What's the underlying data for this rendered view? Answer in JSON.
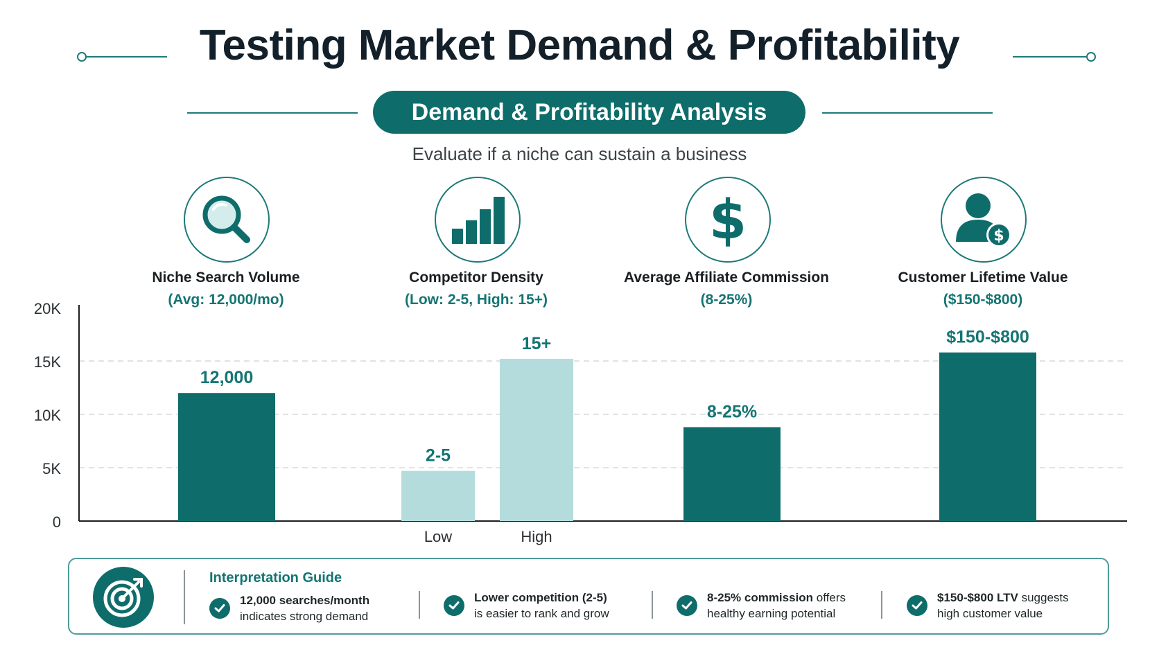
{
  "title": "Testing Market Demand & Profitability",
  "banner": "Demand & Profitability Analysis",
  "subtitle": "Evaluate if a niche can sustain a business",
  "colors": {
    "primary": "#0e6d6b",
    "light": "#b4dcdc",
    "accent_text": "#147573"
  },
  "metrics": [
    {
      "icon": "magnifying-glass-icon",
      "label": "Niche Search Volume",
      "sub": "(Avg: 12,000/mo)"
    },
    {
      "icon": "bar-chart-icon",
      "label": "Competitor Density",
      "sub": "(Low: 2-5, High: 15+)"
    },
    {
      "icon": "dollar-sign-icon",
      "label": "Average Affiliate Commission",
      "sub": "(8-25%)"
    },
    {
      "icon": "user-dollar-icon",
      "label": "Customer Lifetime Value",
      "sub": "($150-$800)"
    }
  ],
  "chart_data": {
    "type": "bar",
    "y_ticks": [
      "0",
      "5K",
      "10K",
      "15K",
      "20K"
    ],
    "ylim": [
      0,
      20000
    ],
    "grid": true,
    "bars": [
      {
        "group": "Niche Search Volume",
        "category": "",
        "value": 12000,
        "label": "12,000",
        "style": "dark"
      },
      {
        "group": "Competitor Density",
        "category": "Low",
        "value": 4700,
        "label": "2-5",
        "style": "light"
      },
      {
        "group": "Competitor Density",
        "category": "High",
        "value": 15200,
        "label": "15+",
        "style": "light"
      },
      {
        "group": "Average Affiliate Commission",
        "category": "",
        "value": 8800,
        "label": "8-25%",
        "style": "dark"
      },
      {
        "group": "Customer Lifetime Value",
        "category": "",
        "value": 15800,
        "label": "$150-$800",
        "style": "dark"
      }
    ]
  },
  "guide": {
    "title": "Interpretation Guide",
    "items": [
      {
        "bold": "12,000 searches/month",
        "rest": "indicates strong demand"
      },
      {
        "bold": "Lower competition (2-5)",
        "rest": "is easier to rank and grow"
      },
      {
        "bold": "8-25% commission",
        "rest_inline": " offers",
        "rest": "healthy earning potential"
      },
      {
        "bold": "$150-$800 LTV",
        "rest_inline": " suggests",
        "rest": "high customer value"
      }
    ]
  }
}
